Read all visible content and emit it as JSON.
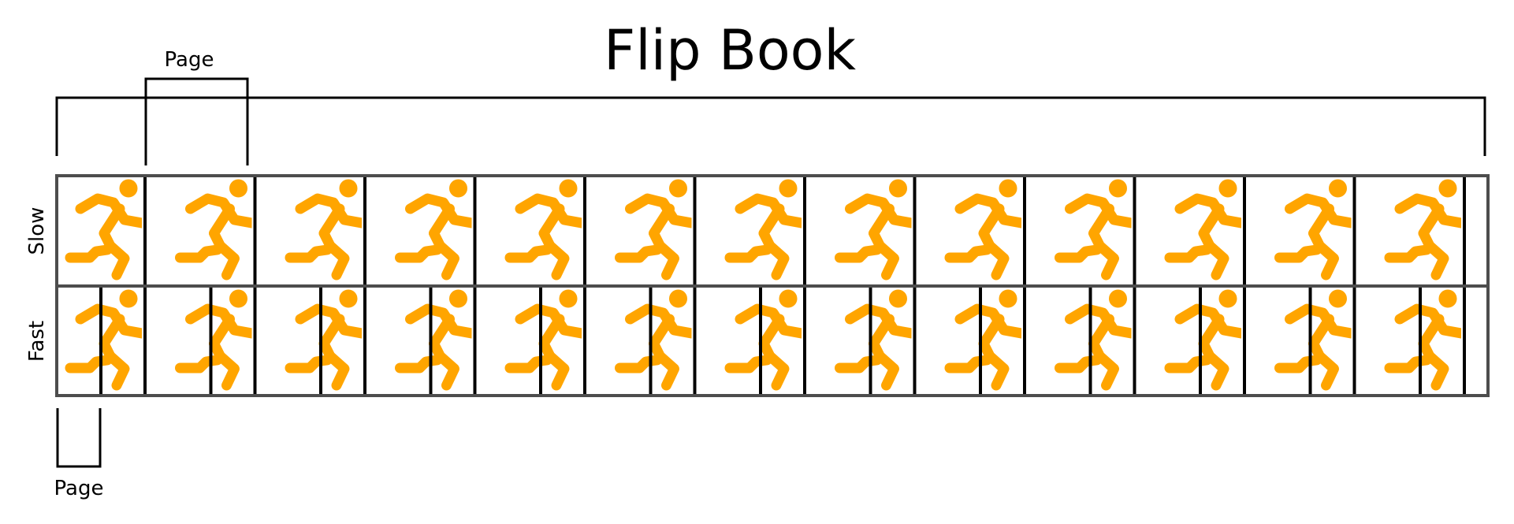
{
  "title": "Flip Book",
  "top_bracket_label": "Page",
  "bottom_bracket_label": "Page",
  "rows": [
    {
      "label": "Slow",
      "frame_count": 13
    },
    {
      "label": "Fast",
      "frame_count": 13
    }
  ],
  "icons": {
    "frame": "running-person-icon"
  },
  "colors": {
    "figure": "#FFA500",
    "strip_border": "#4d4d4d",
    "divider": "#000000",
    "bracket": "#000000",
    "text": "#000000",
    "background": "#ffffff"
  }
}
